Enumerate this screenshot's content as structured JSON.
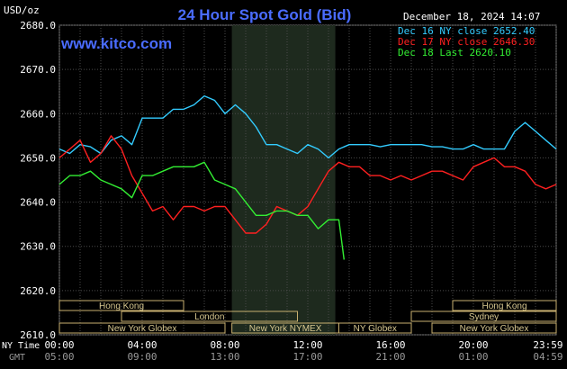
{
  "unit_label": "USD/oz",
  "title": "24 Hour Spot Gold (Bid)",
  "brand": "www.kitco.com",
  "timestamp": "December 18, 2024 14:07",
  "legend": [
    {
      "label": "Dec 16 NY close 2652.40",
      "color": "#33ccff"
    },
    {
      "label": "Dec 17 NY close 2646.30",
      "color": "#ff2020"
    },
    {
      "label": "Dec 18 Last 2620.10",
      "color": "#33ee33"
    }
  ],
  "colors": {
    "background": "#000000",
    "plot_background": "#000000",
    "grid": "#4a4a4a",
    "axis_text": "#ffffff",
    "title": "#4a6cff",
    "brand": "#4a6cff",
    "session_box": "#c8b070",
    "session_text": "#d8c890",
    "shaded_region": "#1e2a1e",
    "gmt_text": "#999999"
  },
  "time_rows": {
    "ny_label": "NY Time",
    "gmt_label": "GMT"
  },
  "sessions": {
    "row1": [
      {
        "label": "Hong Kong",
        "start": "00:00",
        "end": "06:00"
      },
      {
        "label": "Hong Kong",
        "start": "19:00",
        "end": "24:00"
      }
    ],
    "row2": [
      {
        "label": "London",
        "start": "03:00",
        "end": "11:30"
      },
      {
        "label": "Sydney",
        "start": "17:00",
        "end": "24:00"
      }
    ],
    "row3": [
      {
        "label": "New York Globex",
        "start": "00:00",
        "end": "08:00"
      },
      {
        "label": "New York NYMEX",
        "start": "08:20",
        "end": "13:30"
      },
      {
        "label": "NY Globex",
        "start": "13:30",
        "end": "17:00"
      },
      {
        "label": "New York Globex",
        "start": "18:00",
        "end": "24:00"
      }
    ]
  },
  "chart_data": {
    "type": "line",
    "title": "24 Hour Spot Gold (Bid)",
    "ylabel": "USD/oz",
    "ylim": [
      2610,
      2680
    ],
    "yticks": [
      "2680.0",
      "2670.0",
      "2660.0",
      "2650.0",
      "2640.0",
      "2630.0",
      "2620.0",
      "2610.0"
    ],
    "xlim": [
      0,
      24
    ],
    "xticks_ny": [
      "00:00",
      "04:00",
      "08:00",
      "12:00",
      "16:00",
      "20:00",
      "23:59"
    ],
    "xticks_gmt": [
      "05:00",
      "09:00",
      "13:00",
      "17:00",
      "21:00",
      "01:00",
      "04:59"
    ],
    "shaded_hours": [
      8.33,
      13.33
    ],
    "grid": true,
    "legend_position": "top-right",
    "series": [
      {
        "name": "Dec 16 NY close 2652.40",
        "color": "#33ccff",
        "x": [
          0,
          0.5,
          1,
          1.5,
          2,
          2.5,
          3,
          3.5,
          4,
          4.5,
          5,
          5.5,
          6,
          6.5,
          7,
          7.5,
          8,
          8.5,
          9,
          9.5,
          10,
          10.5,
          11,
          11.5,
          12,
          12.5,
          13,
          13.5,
          14,
          14.5,
          15,
          15.5,
          16,
          16.5,
          17,
          17.5,
          18,
          18.5,
          19,
          19.5,
          20,
          20.5,
          21,
          21.5,
          22,
          22.5,
          23,
          23.5,
          24
        ],
        "values": [
          2652,
          2651,
          2653,
          2652.5,
          2651,
          2654,
          2655,
          2653,
          2659,
          2659,
          2659,
          2661,
          2661,
          2662,
          2664,
          2663,
          2660,
          2662,
          2660,
          2657,
          2653,
          2653,
          2652,
          2651,
          2653,
          2652,
          2650,
          2652,
          2653,
          2653,
          2653,
          2652.5,
          2653,
          2653,
          2653,
          2653,
          2652.5,
          2652.5,
          2652,
          2652,
          2653,
          2652,
          2652,
          2652,
          2656,
          2658,
          2656,
          2654,
          2652
        ]
      },
      {
        "name": "Dec 17 NY close 2646.30",
        "color": "#ff2020",
        "x": [
          0,
          0.5,
          1,
          1.5,
          2,
          2.5,
          3,
          3.5,
          4,
          4.5,
          5,
          5.5,
          6,
          6.5,
          7,
          7.5,
          8,
          8.5,
          9,
          9.5,
          10,
          10.5,
          11,
          11.5,
          12,
          12.5,
          13,
          13.5,
          14,
          14.5,
          15,
          15.5,
          16,
          16.5,
          17,
          17.5,
          18,
          18.5,
          19,
          19.5,
          20,
          20.5,
          21,
          21.5,
          22,
          22.5,
          23,
          23.5,
          24
        ],
        "values": [
          2650,
          2652,
          2654,
          2649,
          2651,
          2655,
          2652,
          2646,
          2642,
          2638,
          2639,
          2636,
          2639,
          2639,
          2638,
          2639,
          2639,
          2636,
          2633,
          2633,
          2635,
          2639,
          2638,
          2637,
          2639,
          2643,
          2647,
          2649,
          2648,
          2648,
          2646,
          2646,
          2645,
          2646,
          2645,
          2646,
          2647,
          2647,
          2646,
          2645,
          2648,
          2649,
          2650,
          2648,
          2648,
          2647,
          2644,
          2643,
          2644
        ]
      },
      {
        "name": "Dec 18 Last 2620.10",
        "color": "#33ee33",
        "x": [
          0,
          0.5,
          1,
          1.5,
          2,
          2.5,
          3,
          3.5,
          4,
          4.5,
          5,
          5.5,
          6,
          6.5,
          7,
          7.5,
          8,
          8.5,
          9,
          9.5,
          10,
          10.5,
          11,
          11.5,
          12,
          12.5,
          13,
          13.5,
          13.75
        ],
        "values": [
          2644,
          2646,
          2646,
          2647,
          2645,
          2644,
          2643,
          2641,
          2646,
          2646,
          2647,
          2648,
          2648,
          2648,
          2649,
          2645,
          2644,
          2643,
          2640,
          2637,
          2637,
          2638,
          2638,
          2637,
          2637,
          2634,
          2636,
          2636,
          2627
        ]
      }
    ]
  }
}
